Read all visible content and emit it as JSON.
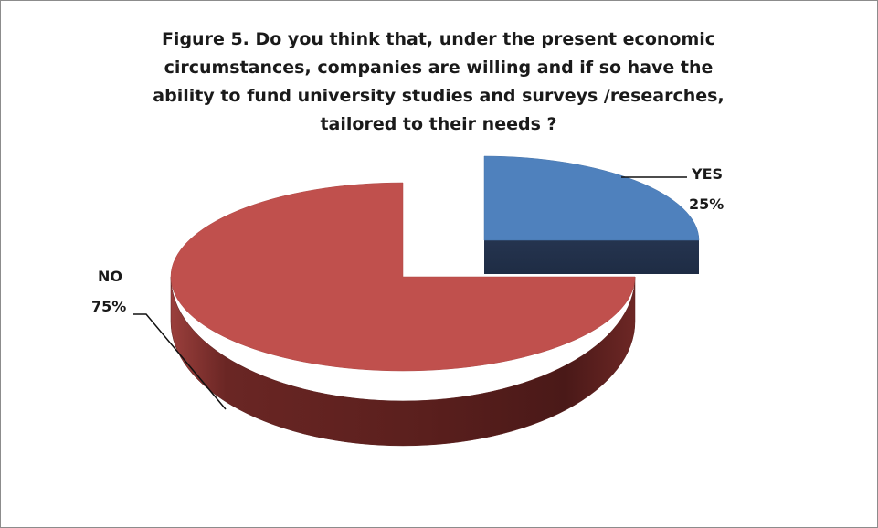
{
  "chart_data": {
    "type": "pie",
    "title_lines": [
      "Figure 5. Do you think that, under the present economic",
      "circumstances, companies are willing and if so have the",
      "ability to fund university studies and surveys /researches,",
      "tailored to their needs ?"
    ],
    "slices": [
      {
        "name": "YES",
        "value": 25,
        "label": "25%",
        "color": "#4f81bd"
      },
      {
        "name": "NO",
        "value": 75,
        "label": "75%",
        "color": "#c0504d"
      }
    ],
    "exploded": true,
    "three_d": true,
    "legend": "none"
  }
}
